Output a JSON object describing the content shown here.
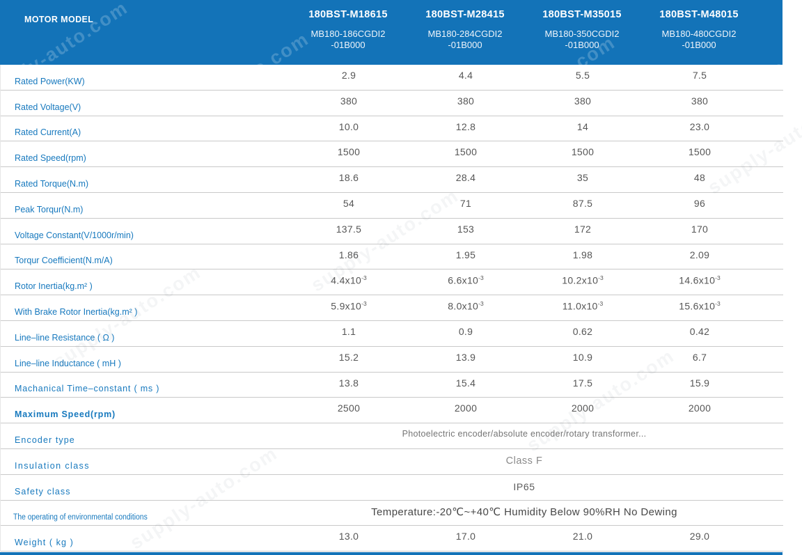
{
  "watermark_text": "supply-auto.com",
  "header": {
    "row_label": "MOTOR MODEL",
    "models": [
      {
        "name": "180BST-M18615",
        "code_line1": "MB180-186CGDI2",
        "code_line2": "-01B000"
      },
      {
        "name": "180BST-M28415",
        "code_line1": "MB180-284CGDI2",
        "code_line2": "-01B000"
      },
      {
        "name": "180BST-M35015",
        "code_line1": "MB180-350CGDI2",
        "code_line2": "-01B000"
      },
      {
        "name": "180BST-M48015",
        "code_line1": "MB180-480CGDI2",
        "code_line2": "-01B000"
      }
    ]
  },
  "table": {
    "rows": [
      {
        "label": "Rated Power(KW)",
        "values": [
          "2.9",
          "4.4",
          "5.5",
          "7.5"
        ]
      },
      {
        "label": "Rated Voltage(V)",
        "values": [
          "380",
          "380",
          "380",
          "380"
        ]
      },
      {
        "label": "Rated Current(A)",
        "values": [
          "10.0",
          "12.8",
          "14",
          "23.0"
        ]
      },
      {
        "label": "Rated Speed(rpm)",
        "values": [
          "1500",
          "1500",
          "1500",
          "1500"
        ]
      },
      {
        "label": "Rated Torque(N.m)",
        "values": [
          "18.6",
          "28.4",
          "35",
          "48"
        ]
      },
      {
        "label": "Peak Torqur(N.m)",
        "values": [
          "54",
          "71",
          "87.5",
          "96"
        ]
      },
      {
        "label": "Voltage Constant(V/1000r/min)",
        "values": [
          "137.5",
          "153",
          "172",
          "170"
        ]
      },
      {
        "label": "Torqur Coefficient(N.m/A)",
        "values": [
          "1.86",
          "1.95",
          "1.98",
          "2.09"
        ]
      },
      {
        "label": "Rotor Inertia(kg.m² )",
        "values": [
          {
            "base": "4.4x10",
            "sup": "-3"
          },
          {
            "base": "6.6x10",
            "sup": "-3"
          },
          {
            "base": "10.2x10",
            "sup": "-3"
          },
          {
            "base": "14.6x10",
            "sup": "-3"
          }
        ]
      },
      {
        "label": "With Brake Rotor Inertia(kg.m² )",
        "values": [
          {
            "base": "5.9x10",
            "sup": "-3"
          },
          {
            "base": "8.0x10",
            "sup": "-3"
          },
          {
            "base": "11.0x10",
            "sup": "-3"
          },
          {
            "base": "15.6x10",
            "sup": "-3"
          }
        ]
      },
      {
        "label": "Line–line Resistance ( Ω )",
        "values": [
          "1.1",
          "0.9",
          "0.62",
          "0.42"
        ]
      },
      {
        "label": "Line–line Inductance ( mH )",
        "values": [
          "15.2",
          "13.9",
          "10.9",
          "6.7"
        ]
      },
      {
        "label": "Machanical Time–constant ( ms )",
        "values": [
          "13.8",
          "15.4",
          "17.5",
          "15.9"
        ]
      },
      {
        "label": "Maximum Speed(rpm)",
        "values": [
          "2500",
          "2000",
          "2000",
          "2000"
        ]
      },
      {
        "label": "Encoder type",
        "span": "Photoelectric encoder/absolute encoder/rotary transformer..."
      },
      {
        "label": "Insulation class",
        "span": "Class F"
      },
      {
        "label": "Safety class",
        "span": "IP65"
      },
      {
        "label": "The operating of environmental conditions",
        "span": "Temperature:-20℃~+40℃  Humidity Below 90%RH No Dewing"
      },
      {
        "label": "Weight ( kg )",
        "values": [
          "13.0",
          "17.0",
          "21.0",
          "29.0"
        ]
      }
    ]
  },
  "colors": {
    "header_blue": "#1373b8",
    "label_blue": "#1779be",
    "value_gray": "#565656",
    "divider_gray": "#c9c9c9"
  }
}
